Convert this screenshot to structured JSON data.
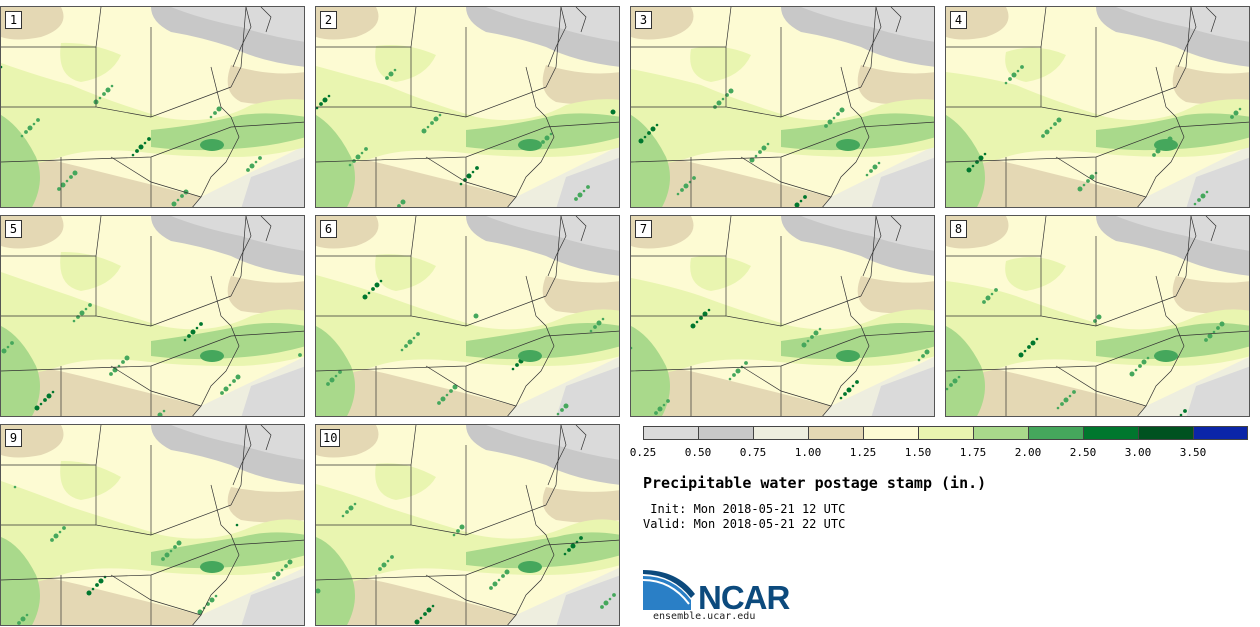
{
  "panels": [
    {
      "label": "1"
    },
    {
      "label": "2"
    },
    {
      "label": "3"
    },
    {
      "label": "4"
    },
    {
      "label": "5"
    },
    {
      "label": "6"
    },
    {
      "label": "7"
    },
    {
      "label": "8"
    },
    {
      "label": "9"
    },
    {
      "label": "10"
    }
  ],
  "colorbar": {
    "ticks": [
      "0.25",
      "0.50",
      "0.75",
      "1.00",
      "1.25",
      "1.50",
      "1.75",
      "2.00",
      "2.50",
      "3.00",
      "3.50"
    ],
    "colors": [
      "#dadada",
      "#c8c8c8",
      "#eeeedf",
      "#e4d8b4",
      "#fdfbd3",
      "#e9f5b0",
      "#a9d98b",
      "#45a75c",
      "#00772e",
      "#005220",
      "#0b25a8"
    ]
  },
  "title": "Precipitable water postage stamp (in.)",
  "init": " Init: Mon 2018-05-21 12 UTC",
  "valid": "Valid: Mon 2018-05-21 22 UTC",
  "logo": {
    "name": "NCAR",
    "url": "ensemble.ucar.edu"
  }
}
